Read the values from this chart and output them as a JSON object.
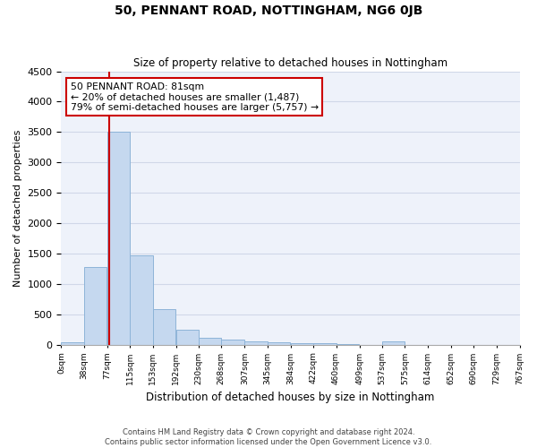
{
  "title": "50, PENNANT ROAD, NOTTINGHAM, NG6 0JB",
  "subtitle": "Size of property relative to detached houses in Nottingham",
  "xlabel": "Distribution of detached houses by size in Nottingham",
  "ylabel": "Number of detached properties",
  "bar_color": "#c5d8ef",
  "bar_edge_color": "#8eb4d8",
  "background_color": "#eef2fa",
  "grid_color": "#d0d8e8",
  "bin_edges": [
    0,
    38,
    77,
    115,
    153,
    192,
    230,
    268,
    307,
    345,
    384,
    422,
    460,
    499,
    537,
    575,
    614,
    652,
    690,
    729,
    767
  ],
  "bin_labels": [
    "0sqm",
    "38sqm",
    "77sqm",
    "115sqm",
    "153sqm",
    "192sqm",
    "230sqm",
    "268sqm",
    "307sqm",
    "345sqm",
    "384sqm",
    "422sqm",
    "460sqm",
    "499sqm",
    "537sqm",
    "575sqm",
    "614sqm",
    "652sqm",
    "690sqm",
    "729sqm",
    "767sqm"
  ],
  "bar_heights": [
    40,
    1280,
    3500,
    1470,
    580,
    240,
    115,
    80,
    55,
    45,
    30,
    20,
    15,
    0,
    55,
    0,
    0,
    0,
    0,
    0
  ],
  "ylim": [
    0,
    4500
  ],
  "property_size": 81,
  "property_label": "50 PENNANT ROAD: 81sqm",
  "annotation_line1": "← 20% of detached houses are smaller (1,487)",
  "annotation_line2": "79% of semi-detached houses are larger (5,757) →",
  "vline_color": "#cc0000",
  "annotation_box_color": "#ffffff",
  "annotation_box_edge_color": "#cc0000",
  "footnote1": "Contains HM Land Registry data © Crown copyright and database right 2024.",
  "footnote2": "Contains public sector information licensed under the Open Government Licence v3.0."
}
